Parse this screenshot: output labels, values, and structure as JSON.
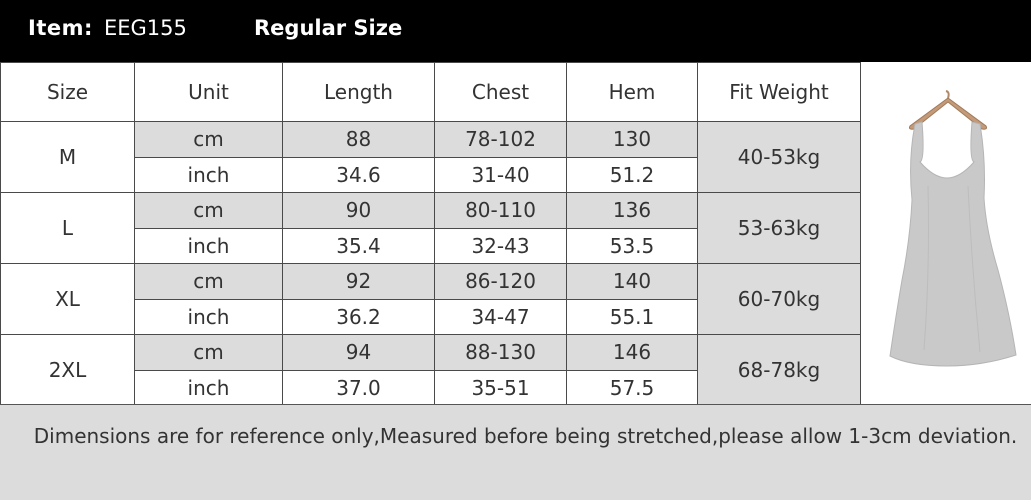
{
  "header": {
    "item_label": "Item:",
    "item_code": "EEG155",
    "size_type": "Regular Size"
  },
  "table": {
    "headers": [
      "Size",
      "Unit",
      "Length",
      "Chest",
      "Hem",
      "Fit Weight"
    ],
    "rows": [
      {
        "size": "M",
        "fit_weight": "40-53kg",
        "cm": {
          "unit": "cm",
          "length": "88",
          "chest": "78-102",
          "hem": "130"
        },
        "inch": {
          "unit": "inch",
          "length": "34.6",
          "chest": "31-40",
          "hem": "51.2"
        }
      },
      {
        "size": "L",
        "fit_weight": "53-63kg",
        "cm": {
          "unit": "cm",
          "length": "90",
          "chest": "80-110",
          "hem": "136"
        },
        "inch": {
          "unit": "inch",
          "length": "35.4",
          "chest": "32-43",
          "hem": "53.5"
        }
      },
      {
        "size": "XL",
        "fit_weight": "60-70kg",
        "cm": {
          "unit": "cm",
          "length": "92",
          "chest": "86-120",
          "hem": "140"
        },
        "inch": {
          "unit": "inch",
          "length": "36.2",
          "chest": "34-47",
          "hem": "55.1"
        }
      },
      {
        "size": "2XL",
        "fit_weight": "68-78kg",
        "cm": {
          "unit": "cm",
          "length": "94",
          "chest": "88-130",
          "hem": "146"
        },
        "inch": {
          "unit": "inch",
          "length": "37.0",
          "chest": "35-51",
          "hem": "57.5"
        }
      }
    ]
  },
  "footer": {
    "note": "Dimensions are for reference only,Measured before being stretched,please allow 1-3cm deviation."
  },
  "product_image": {
    "icon": "dress-on-hanger-icon",
    "color": "#c9c9c9"
  }
}
